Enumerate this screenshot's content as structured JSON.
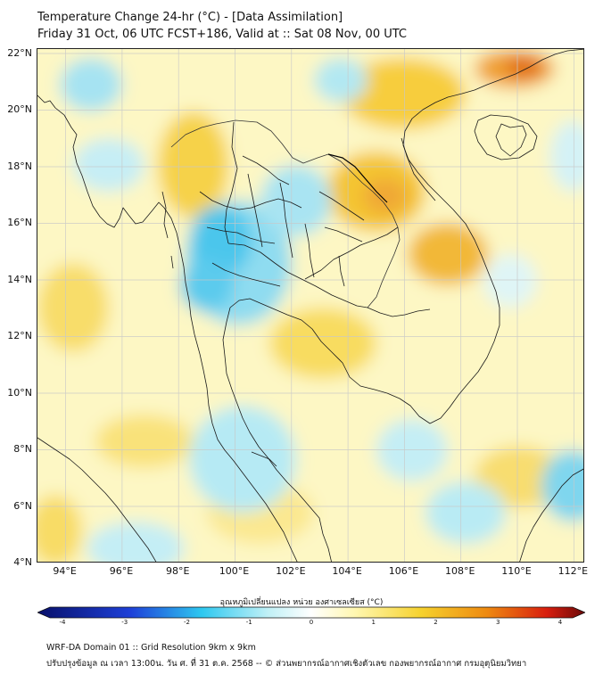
{
  "header": {
    "title_line1": "Temperature Change 24-hr (°C) - [Data Assimilation]",
    "title_line2": "Friday 31 Oct, 06 UTC FCST+186, Valid at :: Sat 08 Nov, 00 UTC"
  },
  "map": {
    "lat_labels": [
      "22°N",
      "20°N",
      "18°N",
      "16°N",
      "14°N",
      "12°N",
      "10°N",
      "8°N",
      "6°N",
      "4°N"
    ],
    "lon_labels": [
      "94°E",
      "96°E",
      "98°E",
      "100°E",
      "102°E",
      "104°E",
      "106°E",
      "108°E",
      "110°E",
      "112°E"
    ],
    "lat_range": [
      4,
      22
    ],
    "lon_range": [
      93,
      112.4
    ]
  },
  "colorbar": {
    "title": "อุณหภูมิเปลี่ยนแปลง หน่วย องศาเซลเซียส (°C)",
    "range": [
      -4,
      4
    ],
    "ticks": [
      "-4",
      "-3",
      "-2",
      "-1",
      "0",
      "1",
      "2",
      "3",
      "4"
    ],
    "colors": {
      "deep_blue": "#08106a",
      "blue": "#1e40d8",
      "cyan": "#2ec8f0",
      "light_cyan": "#bff0f6",
      "white": "#ffffff",
      "light_yellow": "#fff7b0",
      "yellow": "#f6d22e",
      "orange": "#ee8a10",
      "red": "#d81e0e",
      "dark_red": "#6a0808"
    }
  },
  "footer": {
    "line1": "WRF-DA Domain 01 :: Grid Resolution 9km x 9km",
    "line2": "ปรับปรุงข้อมูล ณ เวลา 13:00น. วัน ศ. ที่ 31 ต.ค. 2568 -- © ส่วนพยากรณ์อากาศเชิงตัวเลข กองพยากรณ์อากาศ กรมอุตุนิยมวิทยา"
  }
}
